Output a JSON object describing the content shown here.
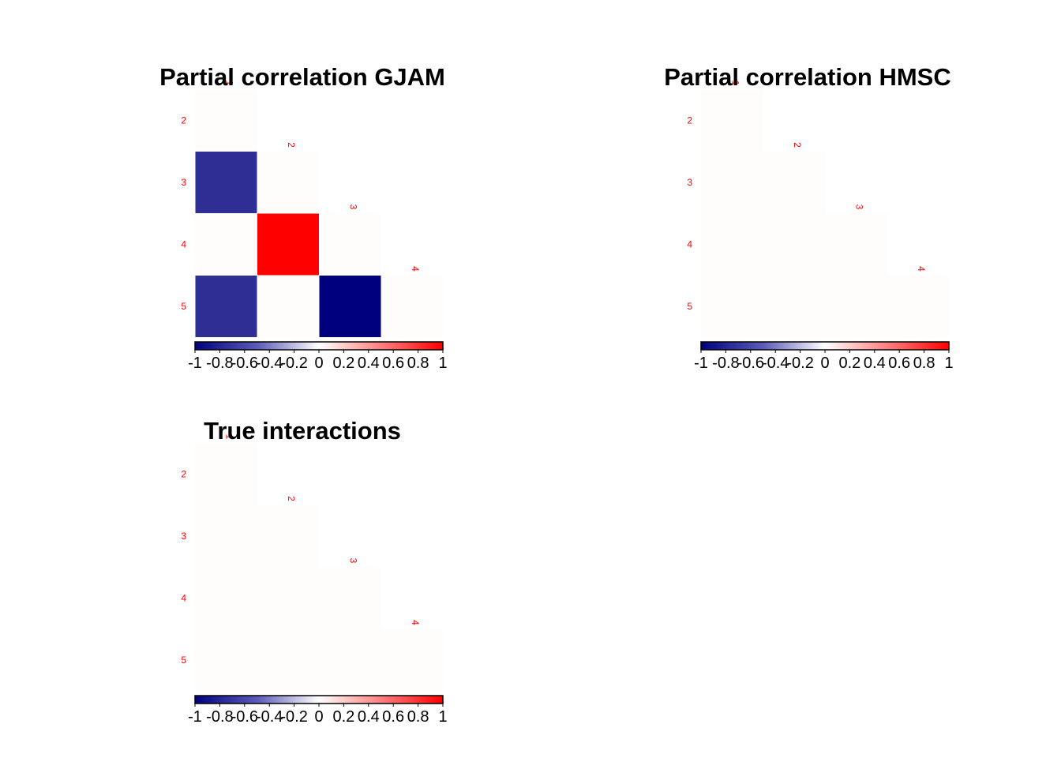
{
  "chart_data": [
    {
      "type": "heatmap",
      "title": "Partial correlation GJAM",
      "row_labels": [
        "2",
        "3",
        "4",
        "5"
      ],
      "col_labels": [
        "1",
        "2",
        "3",
        "4"
      ],
      "values": [
        [
          0.0
        ],
        [
          -0.82,
          0.0
        ],
        [
          0.0,
          1.0,
          0.0
        ],
        [
          -0.82,
          0.0,
          -1.0,
          0.0
        ]
      ],
      "colorbar": {
        "range": [
          -1,
          1
        ],
        "ticks": [
          "-1",
          "-0.8",
          "-0.6",
          "-0.4",
          "-0.2",
          "0",
          "0.2",
          "0.4",
          "0.6",
          "0.8",
          "1"
        ]
      },
      "label_color": "#ff0000"
    },
    {
      "type": "heatmap",
      "title": "Partial correlation HMSC",
      "row_labels": [
        "2",
        "3",
        "4",
        "5"
      ],
      "col_labels": [
        "1",
        "2",
        "3",
        "4"
      ],
      "values": [
        [
          0.0
        ],
        [
          0.0,
          0.0
        ],
        [
          0.0,
          0.0,
          0.0
        ],
        [
          0.0,
          0.0,
          0.0,
          0.0
        ]
      ],
      "colorbar": {
        "range": [
          -1,
          1
        ],
        "ticks": [
          "-1",
          "-0.8",
          "-0.6",
          "-0.4",
          "-0.2",
          "0",
          "0.2",
          "0.4",
          "0.6",
          "0.8",
          "1"
        ]
      },
      "label_color": "#ff0000"
    },
    {
      "type": "heatmap",
      "title": "True interactions",
      "row_labels": [
        "2",
        "3",
        "4",
        "5"
      ],
      "col_labels": [
        "1",
        "2",
        "3",
        "4"
      ],
      "values": [
        [
          0.0
        ],
        [
          0.0,
          0.0
        ],
        [
          0.0,
          0.0,
          0.0
        ],
        [
          0.0,
          0.0,
          0.0,
          0.0
        ]
      ],
      "colorbar": {
        "range": [
          -1,
          1
        ],
        "ticks": [
          "-1",
          "-0.8",
          "-0.6",
          "-0.4",
          "-0.2",
          "0",
          "0.2",
          "0.4",
          "0.6",
          "0.8",
          "1"
        ]
      },
      "label_color": "#ff0000"
    }
  ]
}
